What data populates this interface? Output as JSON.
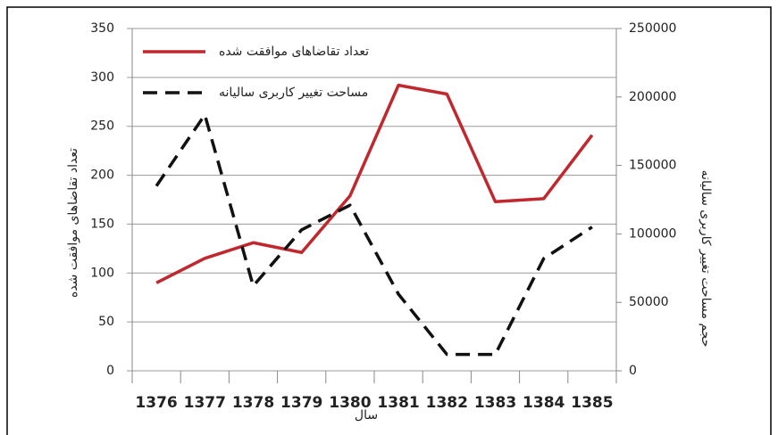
{
  "chart_data": {
    "type": "line",
    "categories": [
      "1376",
      "1377",
      "1378",
      "1379",
      "1380",
      "1381",
      "1382",
      "1383",
      "1384",
      "1385"
    ],
    "x_label": "سال",
    "y_label": "تعداد تقاضاهای موافقت شده",
    "y2_label": "حجم مساحت تغییر کاربری سالیانه",
    "ylim": [
      0,
      350
    ],
    "yticks": [
      0,
      50,
      100,
      150,
      200,
      250,
      300,
      350
    ],
    "y2lim": [
      0,
      250000
    ],
    "y2ticks": [
      0,
      50000,
      100000,
      150000,
      200000,
      250000
    ],
    "grid": true,
    "legend": "top-left",
    "series": [
      {
        "name": "تعداد تقاضاهای موافقت شده",
        "color": "#c0282d",
        "line_style": "solid",
        "axis": "y",
        "values": [
          90,
          115,
          131,
          121,
          179,
          292,
          283,
          173,
          176,
          241
        ]
      },
      {
        "name": "مساحت تغییر کاربری سالیانه",
        "color": "#111111",
        "line_style": "dashed",
        "axis": "y2",
        "values": [
          135000,
          187000,
          62000,
          103000,
          121000,
          56000,
          12000,
          12000,
          82000,
          105000
        ]
      }
    ]
  }
}
